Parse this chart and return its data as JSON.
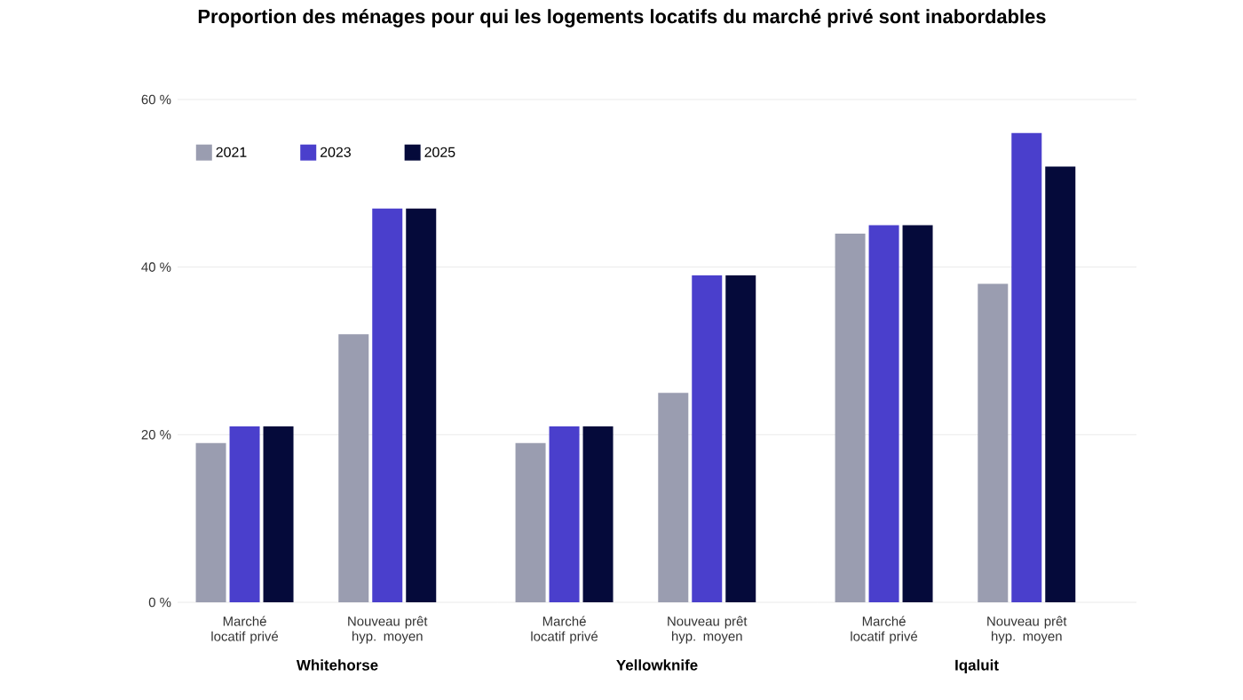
{
  "chart_data": [
    {
      "type": "bar",
      "title": "Proportion des ménages pour qui les logements locatifs du marché privé sont inabordables",
      "xlabel": "Whitehorse",
      "categories": [
        "Marché locatif privé",
        "Nouveau prêt hyp. moyen"
      ],
      "series": [
        {
          "name": "2021",
          "color": "#9a9db0",
          "values": [
            19,
            32
          ]
        },
        {
          "name": "2023",
          "color": "#4a3fcc",
          "values": [
            21,
            47
          ]
        },
        {
          "name": "2025",
          "color": "#050a3a",
          "values": [
            21,
            47
          ]
        }
      ],
      "ylim": [
        0,
        60
      ],
      "yticks": [
        {
          "value": 0,
          "label": "0 %"
        },
        {
          "value": 20,
          "label": "20 %"
        },
        {
          "value": 40,
          "label": "40 %"
        },
        {
          "value": 60,
          "label": "60 %"
        }
      ],
      "grid": "y",
      "legend": "top left"
    },
    {
      "type": "bar",
      "xlabel": "Yellowknife",
      "categories": [
        "Marché locatif privé",
        "Nouveau prêt hyp. moyen"
      ],
      "series": [
        {
          "color": "#9a9db0",
          "values": [
            19,
            25
          ]
        },
        {
          "color": "#4a3fcc",
          "values": [
            21,
            39
          ]
        },
        {
          "color": "#050a3a",
          "values": [
            21,
            39
          ]
        }
      ],
      "ylim": [
        0,
        60
      ],
      "yticks": [
        {
          "value": 0,
          "label": null
        },
        {
          "value": 20,
          "label": null
        },
        {
          "value": 40,
          "label": null
        },
        {
          "value": 60,
          "label": null
        }
      ],
      "grid": "y",
      "tick_labels": "x"
    },
    {
      "type": "bar",
      "xlabel": "Iqaluit",
      "categories": [
        "Marché locatif privé",
        "Nouveau prêt hyp. moyen"
      ],
      "series": [
        {
          "color": "#9a9db0",
          "values": [
            44,
            38
          ]
        },
        {
          "color": "#4a3fcc",
          "values": [
            45,
            56
          ]
        },
        {
          "color": "#050a3a",
          "values": [
            45,
            52
          ]
        }
      ],
      "ylim": [
        0,
        60
      ],
      "yticks": [
        {
          "value": 0,
          "label": null
        },
        {
          "value": 20,
          "label": null
        },
        {
          "value": 40,
          "label": null
        },
        {
          "value": 60,
          "label": null
        }
      ],
      "grid": "y",
      "tick_labels": "x"
    }
  ]
}
